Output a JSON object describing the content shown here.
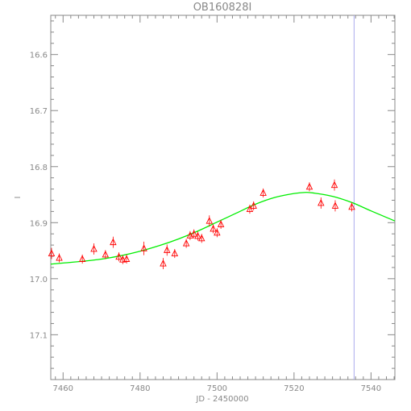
{
  "chart_data": {
    "type": "scatter",
    "title": "OB160828I",
    "xlabel": "JD - 2450000",
    "ylabel": "I",
    "xlim": [
      7456.8,
      7546.2
    ],
    "ylim": [
      17.18,
      16.53
    ],
    "y_inverted": true,
    "x_ticks": [
      "7460",
      "7480",
      "7500",
      "7520",
      "7540"
    ],
    "y_ticks": [
      "16.6",
      "16.7",
      "16.8",
      "16.9",
      "17.0",
      "17.1"
    ],
    "series": [
      {
        "kind": "points",
        "marker": "triangle",
        "color": "#ff0000",
        "x": [
          7457.0,
          7459.0,
          7465.0,
          7468.0,
          7471.0,
          7473.0,
          7474.5,
          7475.5,
          7476.5,
          7481.0,
          7486.0,
          7487.0,
          7489.0,
          7492.0,
          7493.0,
          7494.0,
          7495.0,
          7496.0,
          7498.0,
          7499.0,
          7500.0,
          7501.0,
          7508.5,
          7509.5,
          7512.0,
          7524.0,
          7527.0,
          7530.5,
          7530.7,
          7535.0
        ],
        "y": [
          16.955,
          16.963,
          16.965,
          16.947,
          16.957,
          16.935,
          16.961,
          16.966,
          16.965,
          16.946,
          16.973,
          16.949,
          16.955,
          16.937,
          16.923,
          16.92,
          16.924,
          16.928,
          16.897,
          16.911,
          16.918,
          16.903,
          16.876,
          16.87,
          16.847,
          16.836,
          16.865,
          16.833,
          16.87,
          16.872
        ],
        "errors": [
          0.01,
          0.008,
          0.008,
          0.01,
          0.008,
          0.01,
          0.008,
          0.008,
          0.008,
          0.012,
          0.01,
          0.01,
          0.008,
          0.008,
          0.008,
          0.008,
          0.008,
          0.008,
          0.01,
          0.008,
          0.008,
          0.008,
          0.008,
          0.008,
          0.008,
          0.008,
          0.01,
          0.01,
          0.01,
          0.008
        ]
      },
      {
        "kind": "curve",
        "color": "#00ee00",
        "x": [
          7456.8,
          7460,
          7465,
          7470,
          7475,
          7480,
          7485,
          7490,
          7495,
          7500,
          7505,
          7510,
          7515,
          7520,
          7523,
          7525,
          7530,
          7535,
          7540,
          7546.2
        ],
        "y": [
          16.974,
          16.972,
          16.969,
          16.965,
          16.959,
          16.951,
          16.941,
          16.929,
          16.915,
          16.899,
          16.883,
          16.867,
          16.855,
          16.848,
          16.846,
          16.847,
          16.853,
          16.864,
          16.879,
          16.897
        ]
      }
    ],
    "vline": {
      "x": 7535.6,
      "color": "#aaaaee"
    }
  }
}
